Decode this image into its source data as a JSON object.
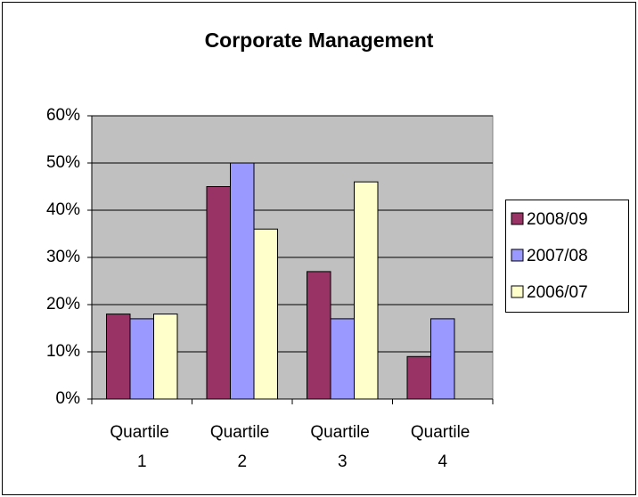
{
  "chart_data": {
    "type": "bar",
    "title": "Corporate Management",
    "categories": [
      "Quartile 1",
      "Quartile 2",
      "Quartile 3",
      "Quartile 4"
    ],
    "series": [
      {
        "name": "2008/09",
        "color": "#993366",
        "values": [
          18,
          45,
          27,
          9
        ]
      },
      {
        "name": "2007/08",
        "color": "#9999ff",
        "values": [
          17,
          50,
          17,
          17
        ]
      },
      {
        "name": "2006/07",
        "color": "#ffffcc",
        "values": [
          18,
          36,
          46,
          null
        ]
      }
    ],
    "ylim": [
      0,
      60
    ],
    "yticks": [
      {
        "value": 0,
        "label": "0%"
      },
      {
        "value": 10,
        "label": "10%"
      },
      {
        "value": 20,
        "label": "20%"
      },
      {
        "value": 30,
        "label": "30%"
      },
      {
        "value": 40,
        "label": "40%"
      },
      {
        "value": 50,
        "label": "50%"
      },
      {
        "value": 60,
        "label": "60%"
      }
    ],
    "grid": true,
    "legend": "right"
  }
}
